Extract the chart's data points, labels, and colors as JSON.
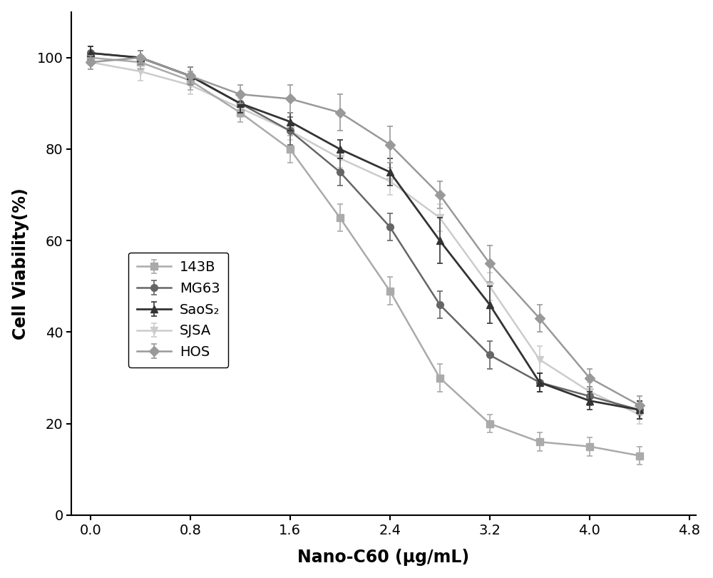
{
  "x": [
    0.0,
    0.4,
    0.8,
    1.2,
    1.6,
    2.0,
    2.4,
    2.8,
    3.2,
    3.6,
    4.0,
    4.4
  ],
  "series": {
    "143B": {
      "y": [
        100,
        99,
        95,
        88,
        80,
        65,
        49,
        30,
        20,
        16,
        15,
        13
      ],
      "yerr": [
        1.5,
        1.5,
        2.0,
        2.0,
        3.0,
        3.0,
        3.0,
        3.0,
        2.0,
        2.0,
        2.0,
        2.0
      ],
      "color": "#aaaaaa",
      "marker": "s",
      "linestyle": "-",
      "linewidth": 1.8,
      "markersize": 7,
      "zorder": 2
    },
    "MG63": {
      "y": [
        101,
        100,
        96,
        90,
        84,
        75,
        63,
        46,
        35,
        29,
        26,
        23
      ],
      "yerr": [
        1.5,
        1.5,
        2.0,
        2.0,
        3.0,
        3.0,
        3.0,
        3.0,
        3.0,
        2.0,
        2.0,
        2.0
      ],
      "color": "#666666",
      "marker": "o",
      "linestyle": "-",
      "linewidth": 1.8,
      "markersize": 7,
      "zorder": 3
    },
    "SaoS2": {
      "y": [
        101,
        100,
        96,
        90,
        86,
        80,
        75,
        60,
        46,
        29,
        25,
        23
      ],
      "yerr": [
        1.5,
        1.5,
        2.0,
        2.0,
        2.0,
        2.0,
        3.0,
        5.0,
        4.0,
        2.0,
        2.0,
        2.0
      ],
      "color": "#333333",
      "marker": "^",
      "linestyle": "-",
      "linewidth": 2.0,
      "markersize": 7,
      "zorder": 4
    },
    "SJSA": {
      "y": [
        99,
        97,
        94,
        89,
        84,
        78,
        73,
        65,
        50,
        34,
        27,
        22
      ],
      "yerr": [
        1.5,
        2.0,
        2.0,
        2.0,
        2.0,
        2.0,
        3.0,
        3.0,
        3.0,
        3.0,
        2.0,
        2.0
      ],
      "color": "#cccccc",
      "marker": "v",
      "linestyle": "-",
      "linewidth": 1.8,
      "markersize": 7,
      "zorder": 1
    },
    "HOS": {
      "y": [
        99,
        100,
        96,
        92,
        91,
        88,
        81,
        70,
        55,
        43,
        30,
        24
      ],
      "yerr": [
        1.5,
        1.5,
        2.0,
        2.0,
        3.0,
        4.0,
        4.0,
        3.0,
        4.0,
        3.0,
        2.0,
        2.0
      ],
      "color": "#999999",
      "marker": "D",
      "linestyle": "-",
      "linewidth": 1.8,
      "markersize": 7,
      "zorder": 5
    }
  },
  "xlabel": "Nano-C60 (μg/mL)",
  "ylabel": "Cell Viability(%)",
  "xlim": [
    -0.15,
    4.85
  ],
  "ylim": [
    0,
    110
  ],
  "xticks": [
    0.0,
    0.8,
    1.6,
    2.4,
    3.2,
    4.0,
    4.8
  ],
  "yticks": [
    0,
    20,
    40,
    60,
    80,
    100
  ],
  "legend_labels": [
    "143B",
    "MG63",
    "SaoS₂",
    "SJSA",
    "HOS"
  ],
  "background_color": "#ffffff",
  "label_fontsize": 17,
  "tick_fontsize": 14,
  "legend_fontsize": 14
}
